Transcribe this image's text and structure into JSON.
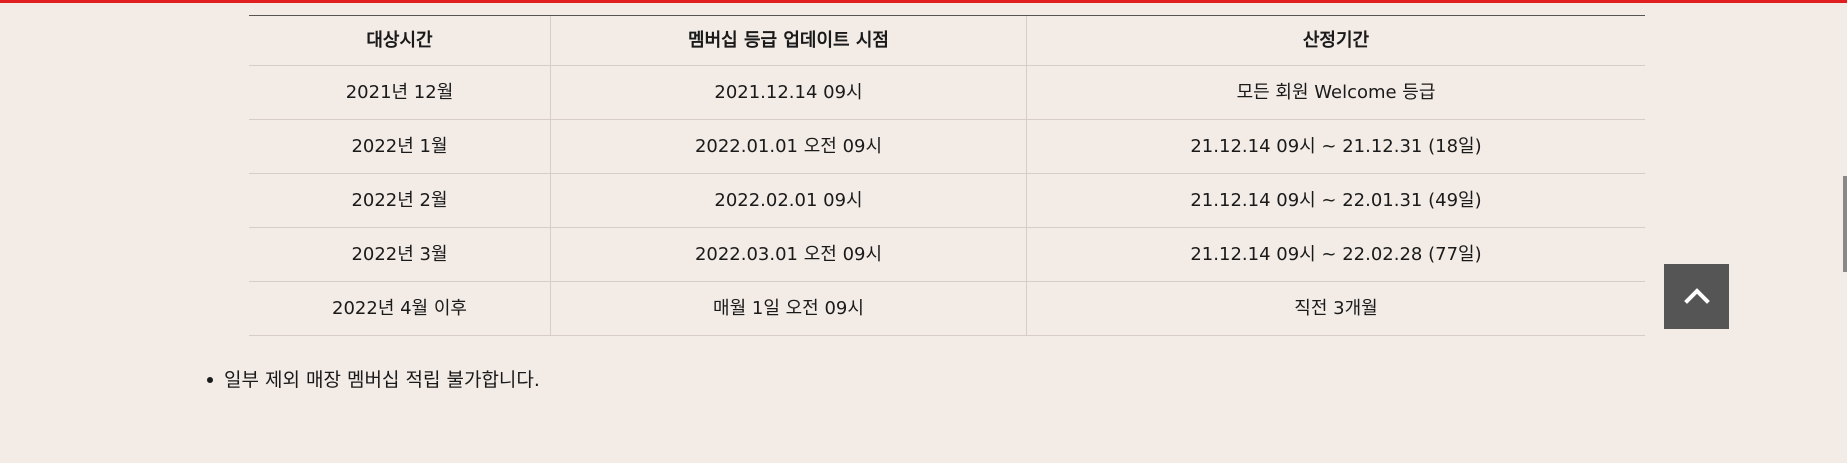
{
  "table": {
    "headers": [
      "대상시간",
      "멤버십 등급 업데이트 시점",
      "산정기간"
    ],
    "rows": [
      [
        "2021년 12월",
        "2021.12.14 09시",
        "모든 회원 Welcome 등급"
      ],
      [
        "2022년 1월",
        "2022.01.01 오전 09시",
        "21.12.14 09시 ~ 21.12.31 (18일)"
      ],
      [
        "2022년 2월",
        "2022.02.01 09시",
        "21.12.14 09시 ~ 22.01.31 (49일)"
      ],
      [
        "2022년 3월",
        "2022.03.01 오전 09시",
        "21.12.14 09시 ~ 22.02.28 (77일)"
      ],
      [
        "2022년 4월 이후",
        "매월 1일 오전 09시",
        "직전 3개월"
      ]
    ]
  },
  "note": {
    "text": "일부 제외 매장 멤버십 적립 불가합니다."
  },
  "scroll_top_button": {
    "icon": "chevron-up-icon"
  },
  "colors": {
    "background": "#f2ebe6",
    "accent": "#e02020",
    "button": "#555555"
  }
}
